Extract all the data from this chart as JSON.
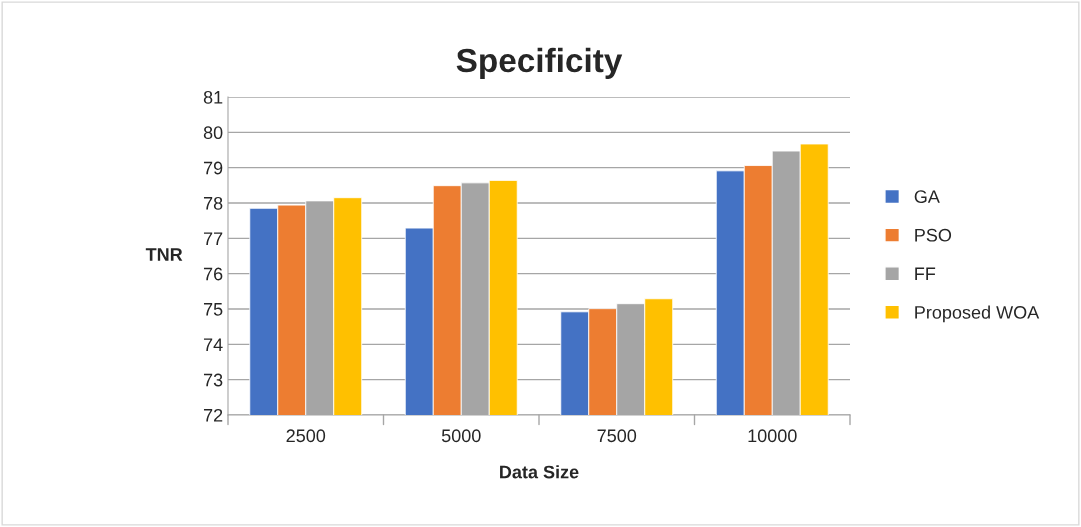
{
  "chart_data": {
    "type": "bar",
    "title": "Specificity",
    "xlabel": "Data Size",
    "ylabel": "TNR",
    "categories": [
      "2500",
      "5000",
      "7500",
      "10000"
    ],
    "series": [
      {
        "name": "GA",
        "color": "#4472c4",
        "values": [
          77.85,
          77.29,
          74.92,
          78.91
        ]
      },
      {
        "name": "PSO",
        "color": "#ed7d31",
        "values": [
          77.94,
          78.49,
          75.01,
          79.06
        ]
      },
      {
        "name": "FF",
        "color": "#a5a5a5",
        "values": [
          78.06,
          78.57,
          75.15,
          79.47
        ]
      },
      {
        "name": "Proposed WOA",
        "color": "#ffc000",
        "values": [
          78.15,
          78.64,
          75.29,
          79.67
        ]
      }
    ],
    "ylim": [
      72,
      81
    ],
    "yticks": [
      72,
      73,
      74,
      75,
      76,
      77,
      78,
      79,
      80,
      81
    ],
    "grid": "y",
    "legend": "right"
  }
}
